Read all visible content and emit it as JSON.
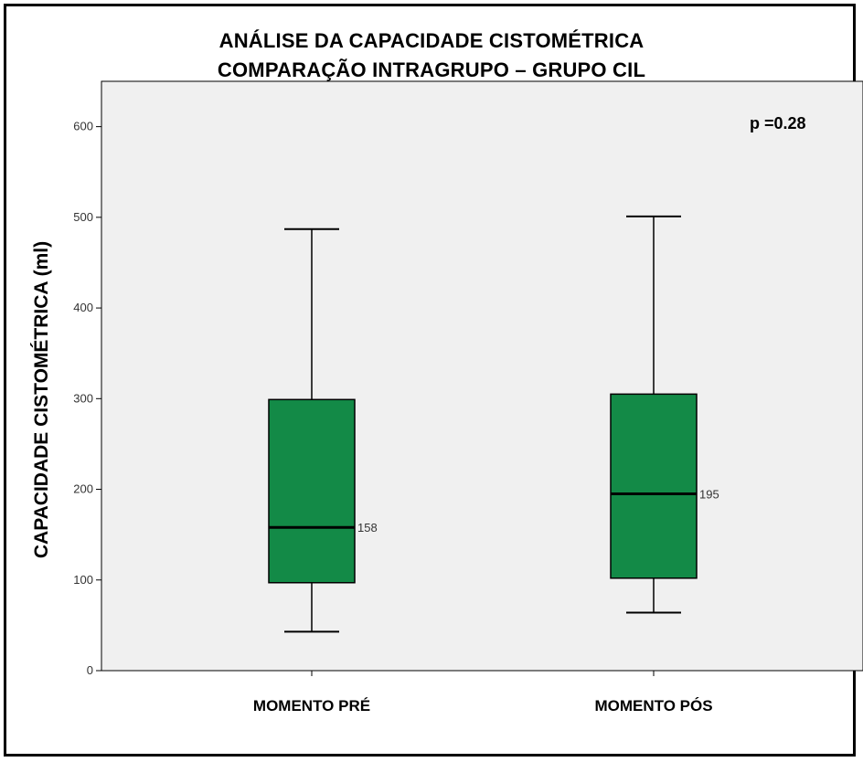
{
  "chart_data": {
    "type": "box",
    "title_line1": "ANÁLISE DA CAPACIDADE  CISTOMÉTRICA",
    "title_line2": "COMPARAÇÃO  INTRAGRUPO – GRUPO CIL",
    "ylabel": "CAPACIDADE  CISTOMÉTRICA  (ml)",
    "xlabel": "",
    "annotation": "p  =0.28",
    "ylim": [
      0,
      650
    ],
    "yticks": [
      0,
      100,
      200,
      300,
      400,
      500,
      600
    ],
    "ytick_labels": [
      "0",
      "100",
      "200",
      "300",
      "400",
      "500",
      "600"
    ],
    "categories": [
      "MOMENTO  PRÉ",
      "MOMENTO  PÓS"
    ],
    "boxes": [
      {
        "min": 43,
        "q1": 97,
        "median": 158,
        "q3": 299,
        "max": 487,
        "median_label": "158"
      },
      {
        "min": 64,
        "q1": 102,
        "median": 195,
        "q3": 305,
        "max": 501,
        "median_label": "195"
      }
    ],
    "colors": {
      "box_fill": "#138a47",
      "plot_bg": "#f0f0f0",
      "line": "#000000"
    },
    "grid": false,
    "legend": "none"
  }
}
